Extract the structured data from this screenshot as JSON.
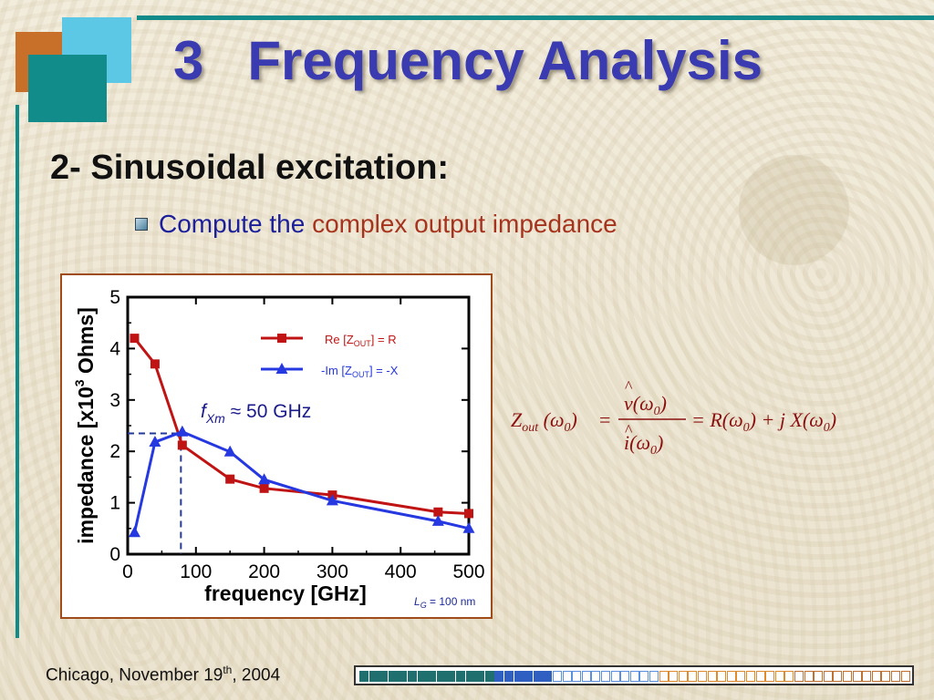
{
  "slide": {
    "title_number": "3",
    "title_text": "Frequency Analysis",
    "subtitle": "2- Sinusoidal excitation:",
    "bullet_plain": "Compute the",
    "bullet_highlight": "complex output impedance",
    "footer_place": "Chicago, November 19",
    "footer_sup": "th",
    "footer_year": ", 2004",
    "colors": {
      "accent": "#118a8a",
      "title": "#3a3bb0",
      "highlight": "#a6331e",
      "frame": "#a04b1a"
    },
    "progress_segments": [
      {
        "color": "#1f6f6f",
        "count": 14
      },
      {
        "color": "#2f5fc0",
        "count": 6
      },
      {
        "color": "#5a8fe0",
        "count": 11
      },
      {
        "color": "#e08a30",
        "count": 14
      },
      {
        "color": "#c07030",
        "count": 12
      }
    ]
  },
  "chart_data": {
    "type": "line",
    "xlabel": "frequency   [GHz]",
    "ylabel_prefix": "impedance   [x10",
    "ylabel_sup": "3",
    "ylabel_suffix": " Ohms]",
    "xlim": [
      0,
      500
    ],
    "ylim": [
      0,
      5
    ],
    "x_ticks": [
      "0",
      "100",
      "200",
      "300",
      "400",
      "500"
    ],
    "y_ticks": [
      "0",
      "1",
      "2",
      "3",
      "4",
      "5"
    ],
    "annotation_f": "f",
    "annotation_sub": "Xm",
    "annotation_rest": " ≈ 50 GHz",
    "marker_x": 78,
    "marker_y": 2.35,
    "note_L": "L",
    "note_sub": "G",
    "note_rest": " = 100 nm",
    "series": [
      {
        "name_pre": "Re [Z",
        "name_sub": "OUT",
        "name_post": "] = R",
        "color": "#c01414",
        "marker": "square",
        "x": [
          10,
          40,
          80,
          150,
          200,
          300,
          455,
          500
        ],
        "y": [
          4.2,
          3.7,
          2.12,
          1.46,
          1.28,
          1.15,
          0.82,
          0.79
        ]
      },
      {
        "name_pre": "-Im [Z",
        "name_sub": "OUT",
        "name_post": "] = -X",
        "color": "#2638e0",
        "marker": "triangle",
        "x": [
          10,
          40,
          80,
          150,
          200,
          300,
          455,
          500
        ],
        "y": [
          0.42,
          2.18,
          2.38,
          1.99,
          1.45,
          1.04,
          0.64,
          0.5
        ]
      }
    ]
  },
  "formula": {
    "lhs_Z": "Z",
    "lhs_sub": "out",
    "arg": "(ω",
    "arg_sub": "0",
    "arg_close": ")",
    "eq": "=",
    "num": "v(ω",
    "num_sub": "0",
    "num_close": ")",
    "den": "i(ω",
    "den_sub": "0",
    "den_close": ")",
    "rhs": "= R(ω",
    "rhs_sub": "0",
    "rhs_mid": ") +  j  X(ω",
    "rhs_sub2": "0",
    "rhs_close": ")",
    "hat": "^"
  }
}
